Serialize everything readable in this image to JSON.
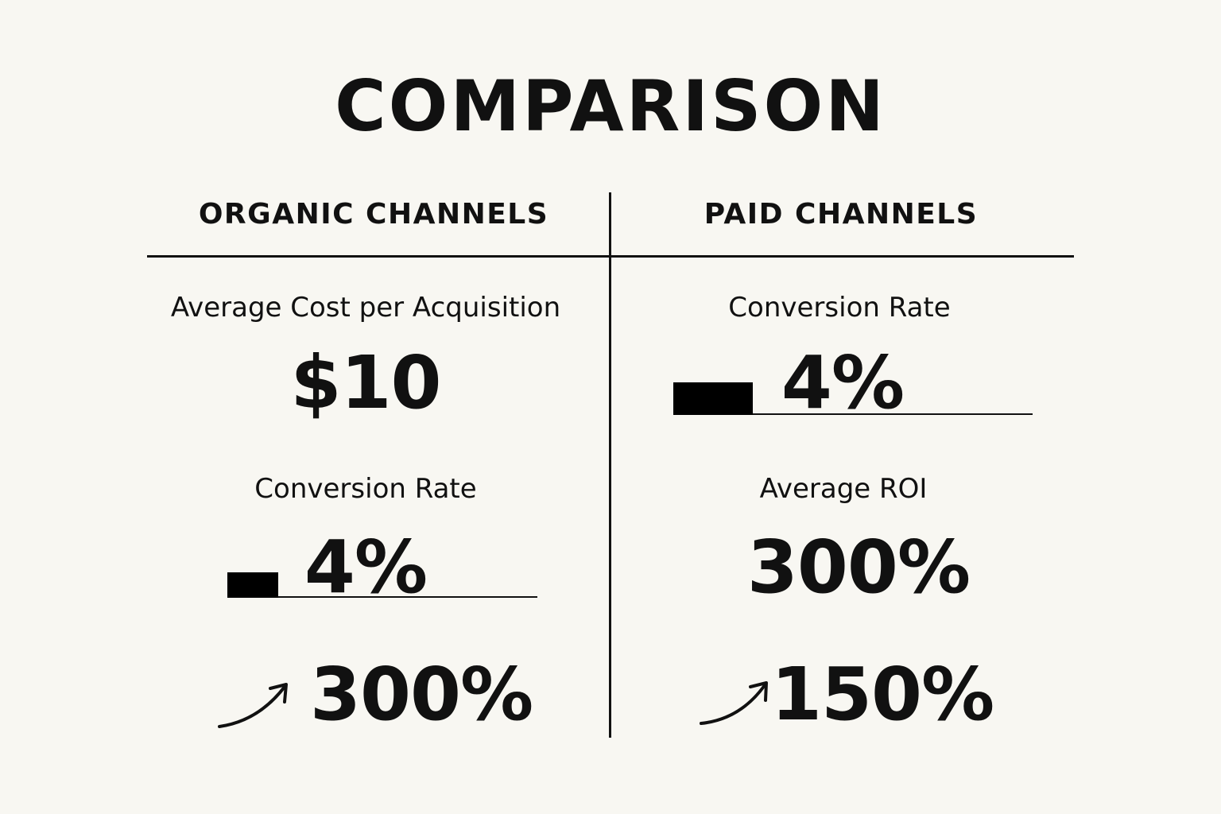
{
  "title": "COMPARISON",
  "columns": {
    "organic": {
      "heading": "ORGANIC CHANNELS",
      "metric1_label": "Average Cost per Acquisition",
      "metric1_value": "$10",
      "metric2_label": "Conversion Rate",
      "metric2_value": "4%",
      "metric2_bar_fraction": 0.04,
      "metric3_value": "300%",
      "metric3_icon": "trend-up-arrow-icon"
    },
    "paid": {
      "heading": "PAID CHANNELS",
      "metric1_label": "Conversion Rate",
      "metric1_value": "4%",
      "metric1_bar_fraction": 0.04,
      "metric2_label": "Average ROI",
      "metric2_value": "300%",
      "metric3_value": "150%",
      "metric3_icon": "trend-up-arrow-icon"
    }
  },
  "colors": {
    "background": "#f8f7f2",
    "ink": "#111111"
  }
}
